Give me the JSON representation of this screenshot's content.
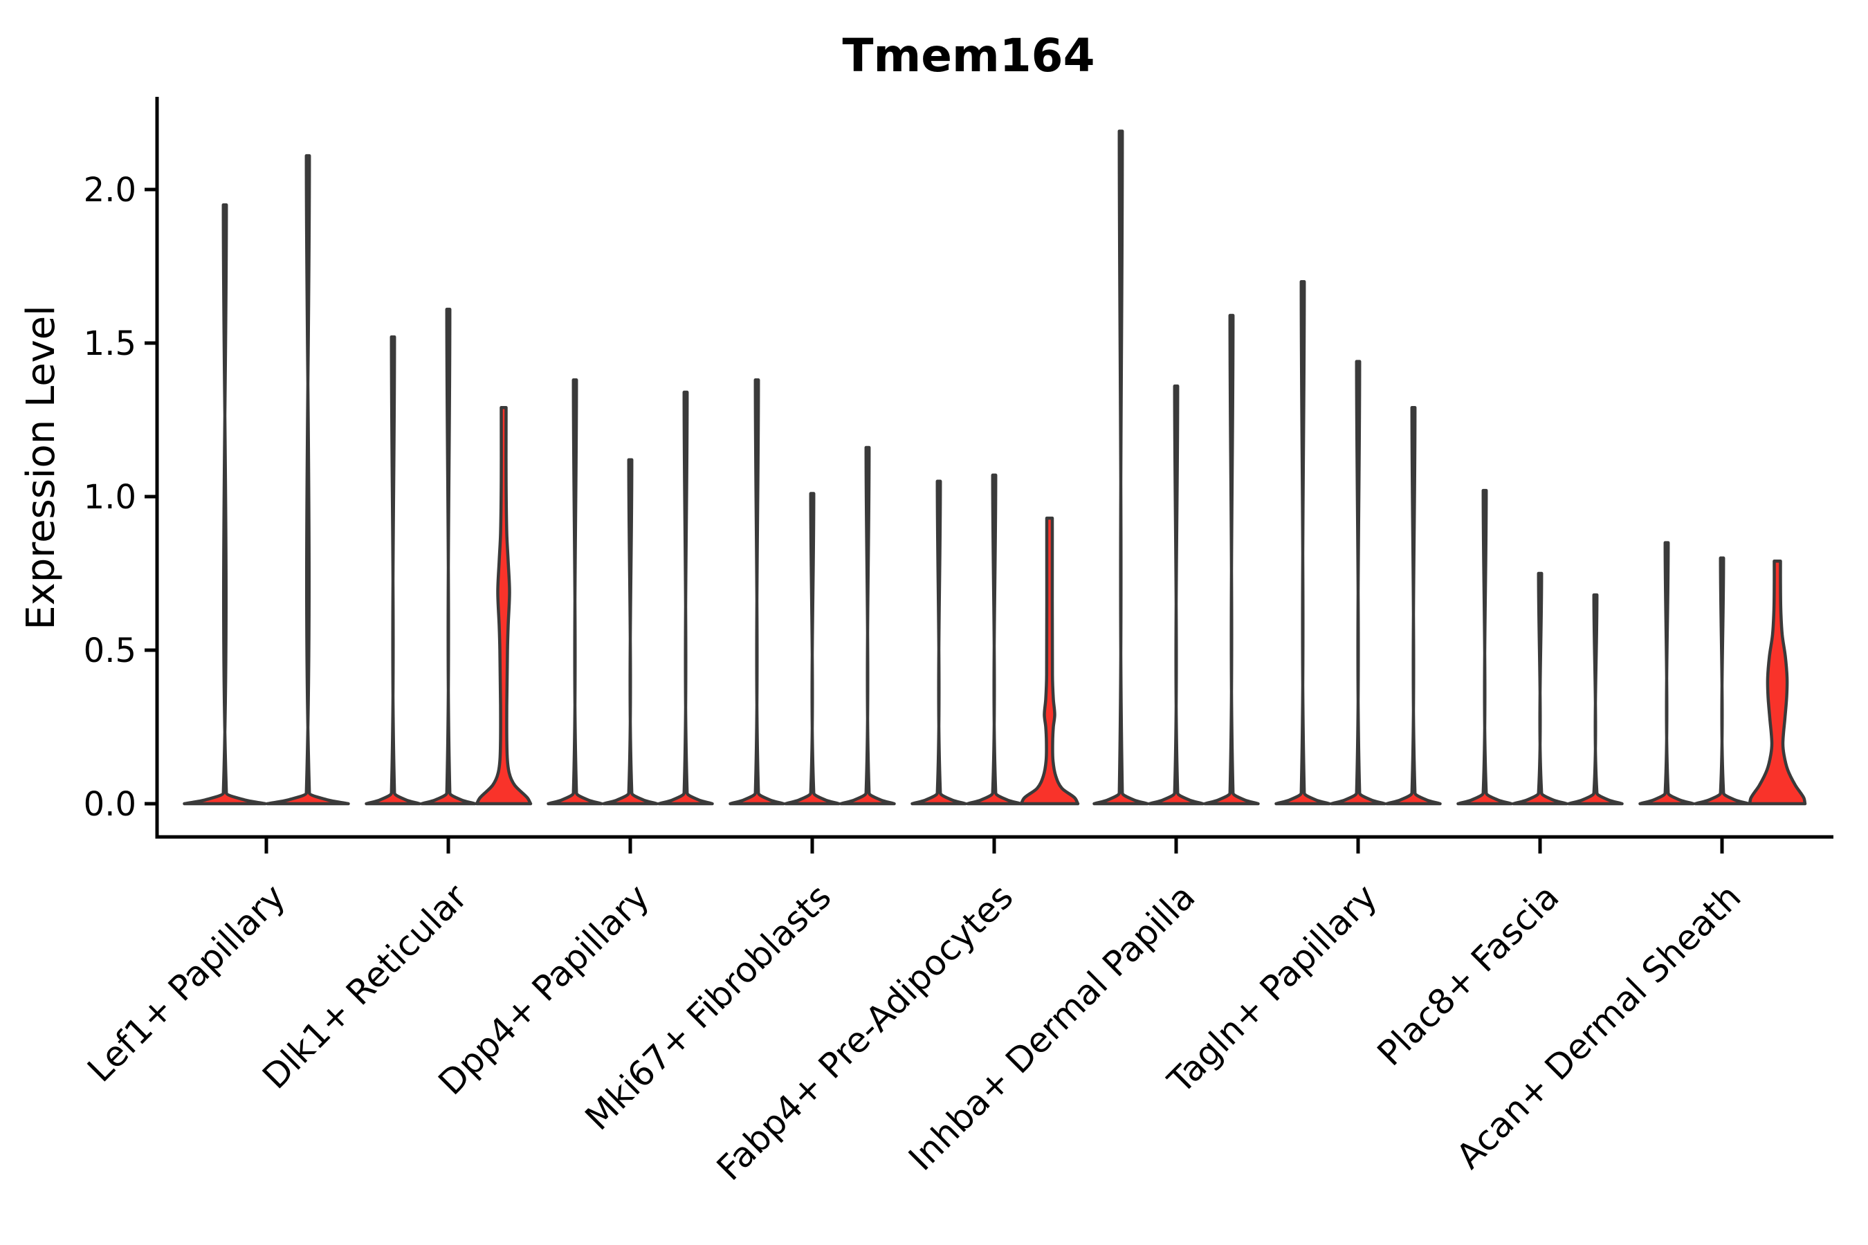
{
  "title": "Tmem164",
  "y_axis": {
    "label": "Expression Level",
    "tick_labels": [
      "0.0",
      "0.5",
      "1.0",
      "1.5",
      "2.0"
    ]
  },
  "x_axis": {
    "categories": [
      "Lef1+ Papillary",
      "Dlk1+ Reticular",
      "Dpp4+ Papillary",
      "Mki67+ Fibroblasts",
      "Fabp4+ Pre-Adipocytes",
      "Inhba+ Dermal Papilla",
      "Tagln+ Papillary",
      "Plac8+ Fascia",
      "Acan+ Dermal Sheath"
    ]
  },
  "chart_data": {
    "type": "violin",
    "title": "Tmem164",
    "xlabel": "",
    "ylabel": "Expression Level",
    "ylim": [
      -0.11,
      2.3
    ],
    "yticks": [
      0,
      0.5,
      1,
      1.5,
      2
    ],
    "ytick_labels": [
      "0.0",
      "0.5",
      "1.0",
      "1.5",
      "2.0"
    ],
    "grid": false,
    "legend": null,
    "colors": {
      "violin_fill": "#F9332A",
      "violin_outline": "#3A3A3A",
      "axis": "#000000",
      "text": "#000000",
      "background": "#ffffff"
    },
    "categories": [
      "Lef1+ Papillary",
      "Dlk1+ Reticular",
      "Dpp4+ Papillary",
      "Mki67+ Fibroblasts",
      "Fabp4+ Pre-Adipocytes",
      "Inhba+ Dermal Papilla",
      "Tagln+ Papillary",
      "Plac8+ Fascia",
      "Acan+ Dermal Sheath"
    ],
    "groups": [
      {
        "category": "Lef1+ Papillary",
        "violins": [
          {
            "max": 1.95,
            "kind": "spike"
          },
          {
            "max": 2.11,
            "kind": "spike"
          }
        ]
      },
      {
        "category": "Dlk1+ Reticular",
        "violins": [
          {
            "max": 1.52,
            "kind": "spike"
          },
          {
            "max": 1.61,
            "kind": "spike"
          },
          {
            "max": 1.29,
            "kind": "bulged",
            "profile": [
              [
                0,
                39
              ],
              [
                0.02,
                34
              ],
              [
                0.06,
                16
              ],
              [
                0.1,
                8
              ],
              [
                0.16,
                5
              ],
              [
                0.32,
                4.5
              ],
              [
                0.5,
                5.5
              ],
              [
                0.58,
                6.5
              ],
              [
                0.69,
                8.5
              ],
              [
                0.79,
                6.5
              ],
              [
                0.88,
                4.5
              ],
              [
                1.05,
                3.5
              ],
              [
                1.29,
                3.5
              ]
            ]
          }
        ]
      },
      {
        "category": "Dpp4+ Papillary",
        "violins": [
          {
            "max": 1.38,
            "kind": "spike"
          },
          {
            "max": 1.12,
            "kind": "spike"
          },
          {
            "max": 1.34,
            "kind": "spike"
          }
        ]
      },
      {
        "category": "Mki67+ Fibroblasts",
        "violins": [
          {
            "max": 1.38,
            "kind": "spike"
          },
          {
            "max": 1.01,
            "kind": "spike"
          },
          {
            "max": 1.16,
            "kind": "spike"
          }
        ]
      },
      {
        "category": "Fabp4+ Pre-Adipocytes",
        "violins": [
          {
            "max": 1.05,
            "kind": "spike"
          },
          {
            "max": 1.07,
            "kind": "spike"
          },
          {
            "max": 0.93,
            "kind": "bulged",
            "profile": [
              [
                0,
                41
              ],
              [
                0.02,
                36
              ],
              [
                0.05,
                18
              ],
              [
                0.09,
                9
              ],
              [
                0.14,
                5
              ],
              [
                0.2,
                4.5
              ],
              [
                0.25,
                5.5
              ],
              [
                0.29,
                7.5
              ],
              [
                0.34,
                5.5
              ],
              [
                0.42,
                4.2
              ],
              [
                0.93,
                4
              ]
            ]
          }
        ]
      },
      {
        "category": "Inhba+ Dermal Papilla",
        "violins": [
          {
            "max": 2.19,
            "kind": "spike"
          },
          {
            "max": 1.36,
            "kind": "spike"
          },
          {
            "max": 1.59,
            "kind": "spike"
          }
        ]
      },
      {
        "category": "Tagln+ Papillary",
        "violins": [
          {
            "max": 1.7,
            "kind": "spike"
          },
          {
            "max": 1.44,
            "kind": "spike"
          },
          {
            "max": 1.29,
            "kind": "spike"
          }
        ]
      },
      {
        "category": "Plac8+ Fascia",
        "violins": [
          {
            "max": 1.02,
            "kind": "spike"
          },
          {
            "max": 0.75,
            "kind": "spike"
          },
          {
            "max": 0.68,
            "kind": "spike"
          }
        ]
      },
      {
        "category": "Acan+ Dermal Sheath",
        "violins": [
          {
            "max": 0.85,
            "kind": "spike"
          },
          {
            "max": 0.8,
            "kind": "spike"
          },
          {
            "max": 0.79,
            "kind": "bulged",
            "profile": [
              [
                0,
                40
              ],
              [
                0.02,
                38
              ],
              [
                0.06,
                26
              ],
              [
                0.11,
                15
              ],
              [
                0.16,
                9.5
              ],
              [
                0.2,
                8
              ],
              [
                0.28,
                11
              ],
              [
                0.35,
                13.5
              ],
              [
                0.41,
                14
              ],
              [
                0.48,
                11.5
              ],
              [
                0.55,
                7
              ],
              [
                0.63,
                5
              ],
              [
                0.72,
                4.5
              ],
              [
                0.79,
                4.5
              ]
            ]
          }
        ]
      }
    ]
  }
}
